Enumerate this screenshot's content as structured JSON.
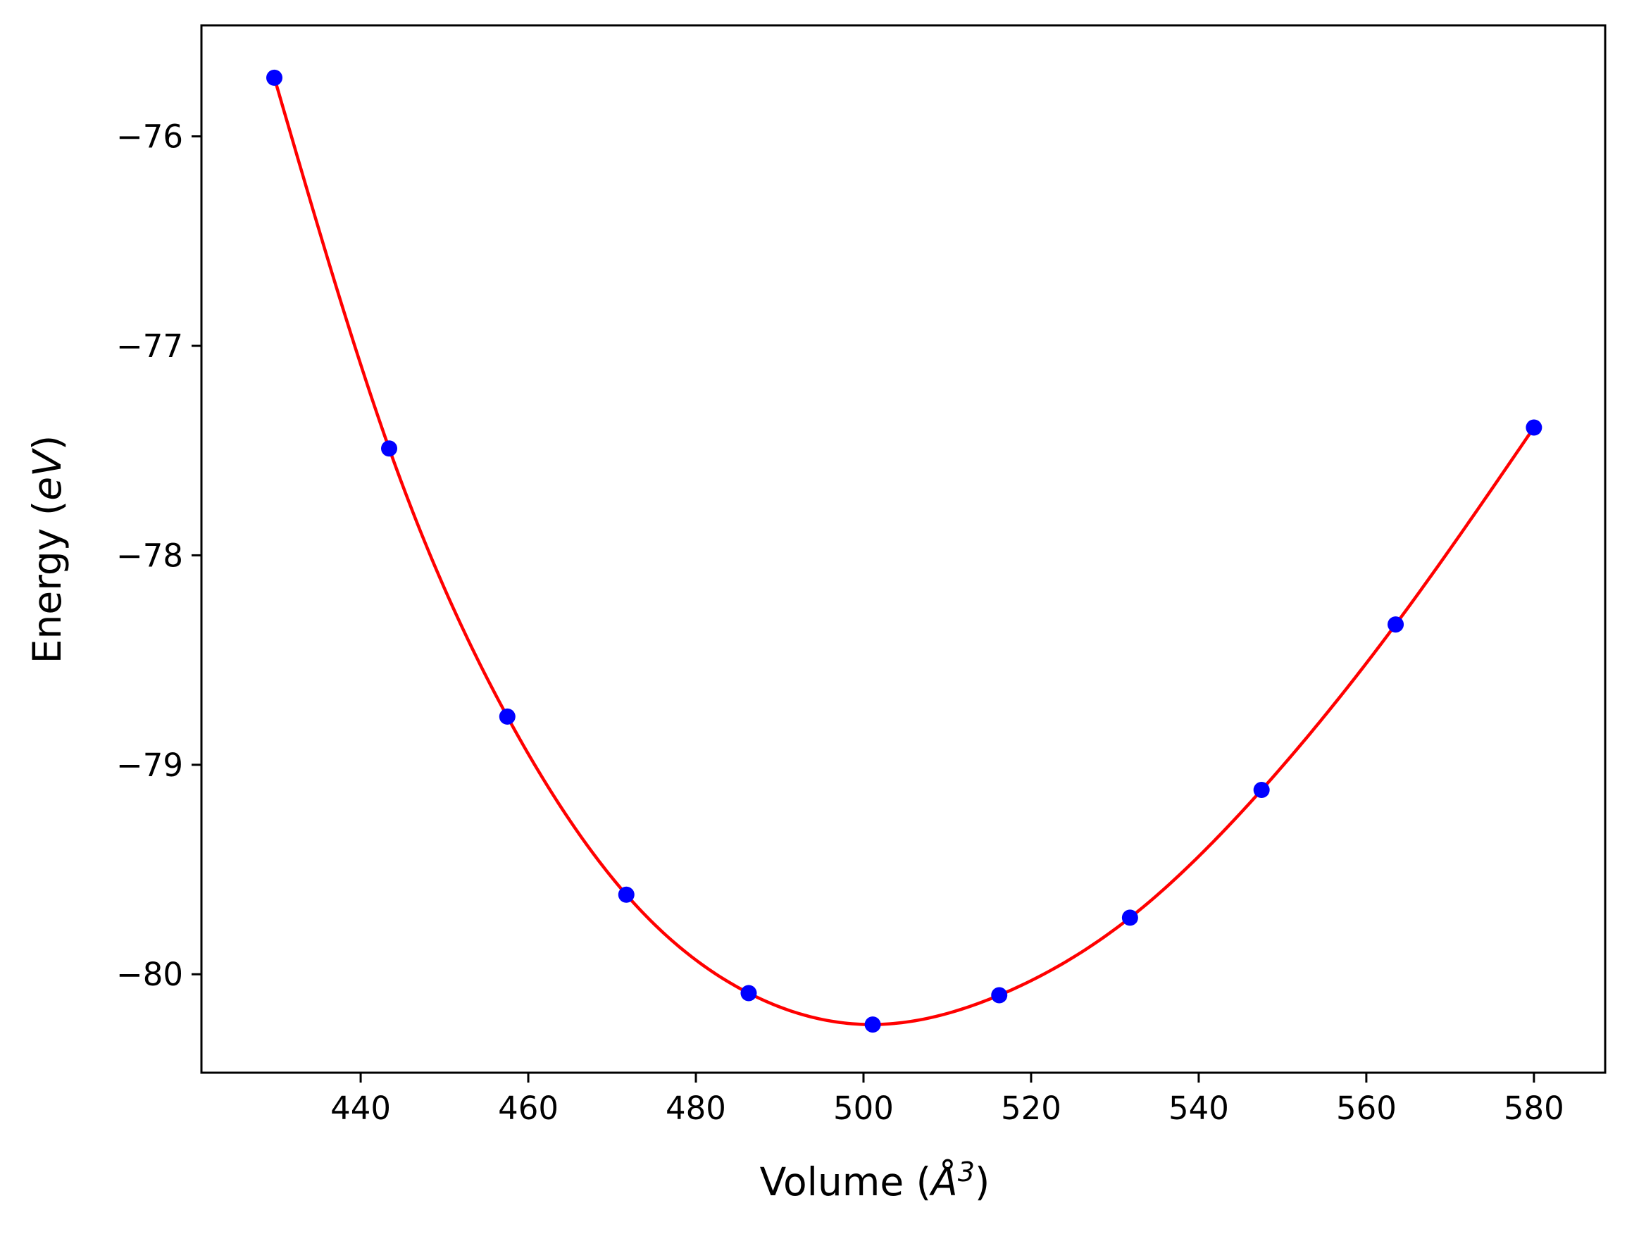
{
  "chart_data": {
    "type": "scatter",
    "xlabel": "Volume (",
    "xlabel_unit_symbol": "Å",
    "xlabel_unit_exp": "3",
    "xlabel_close": ")",
    "ylabel": "Energy (",
    "ylabel_unit": "eV",
    "ylabel_close": ")",
    "xlim": [
      421,
      588.5
    ],
    "ylim": [
      -80.47,
      -75.47
    ],
    "x_ticks": [
      440,
      460,
      480,
      500,
      520,
      540,
      560,
      580
    ],
    "x_tick_labels": [
      "440",
      "460",
      "480",
      "500",
      "520",
      "540",
      "560",
      "580"
    ],
    "y_ticks": [
      -76,
      -77,
      -78,
      -79,
      -80
    ],
    "y_tick_labels": [
      "−76",
      "−77",
      "−78",
      "−79",
      "−80"
    ],
    "grid": false,
    "series": [
      {
        "kind": "points",
        "color": "#0000ff",
        "x": [
          429.7,
          443.4,
          457.5,
          471.7,
          486.3,
          501.1,
          516.2,
          531.8,
          547.5,
          563.5,
          580.0
        ],
        "y": [
          -75.72,
          -77.49,
          -78.77,
          -79.62,
          -80.09,
          -80.24,
          -80.1,
          -79.73,
          -79.12,
          -78.33,
          -77.39
        ]
      },
      {
        "kind": "fit-curve",
        "color": "#ff0000",
        "x": [
          429.7,
          443.4,
          457.5,
          471.7,
          486.3,
          501.1,
          516.2,
          531.8,
          547.5,
          563.5,
          580.0
        ],
        "y": [
          -75.72,
          -77.49,
          -78.77,
          -79.62,
          -80.09,
          -80.24,
          -80.1,
          -79.73,
          -79.12,
          -78.33,
          -77.39
        ]
      }
    ]
  }
}
